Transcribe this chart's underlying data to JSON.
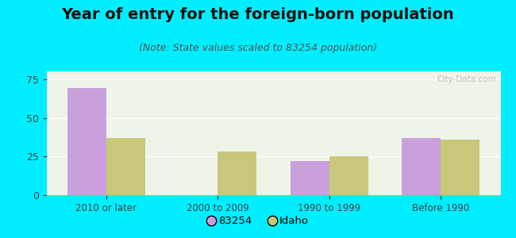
{
  "title": "Year of entry for the foreign-born population",
  "subtitle": "(Note: State values scaled to 83254 population)",
  "categories": [
    "2010 or later",
    "2000 to 2009",
    "1990 to 1999",
    "Before 1990"
  ],
  "series_83254": [
    69,
    0,
    22,
    37
  ],
  "series_idaho": [
    37,
    28,
    25,
    36
  ],
  "color_83254": "#c9a0dc",
  "color_idaho": "#c8c87a",
  "ylim": [
    0,
    80
  ],
  "yticks": [
    0,
    25,
    50,
    75
  ],
  "background_outer": "#00eeff",
  "background_inner": "#eef5e8",
  "title_fontsize": 14,
  "subtitle_fontsize": 9,
  "legend_label_83254": "83254",
  "legend_label_idaho": "Idaho",
  "bar_width": 0.35,
  "watermark": "City-Data.com"
}
